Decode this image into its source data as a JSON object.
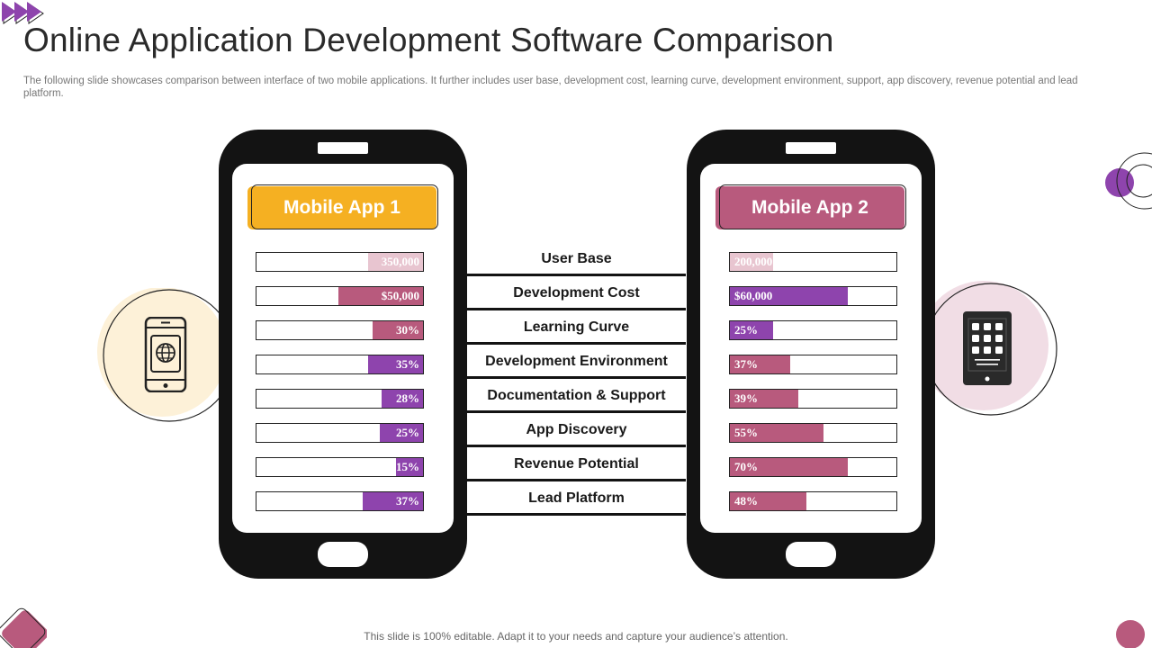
{
  "title": "Online Application Development Software Comparison",
  "subtitle": "The following slide showcases comparison between interface of two mobile applications. It further includes user base, development cost, learning curve, development environment, support, app discovery, revenue potential and  lead platform.",
  "footer": "This slide is 100% editable. Adapt it to your needs and capture your audience’s attention.",
  "colors": {
    "app1_header": "#f5b022",
    "app2_header": "#b85a7d",
    "purple": "#8e44ad",
    "mauve": "#b85a7d",
    "pale_pink": "#e8c5d0",
    "phone": "#131313",
    "cream_circle": "#fdf1d8",
    "pink_circle": "#f1dde5"
  },
  "app1": {
    "label": "Mobile App 1",
    "icon": "passport-phone-icon"
  },
  "app2": {
    "label": "Mobile App 2",
    "icon": "tablet-grid-icon"
  },
  "criteria": [
    "User Base",
    "Development Cost",
    "Learning Curve",
    "Development Environment",
    "Documentation & Support",
    "App Discovery",
    "Revenue Potential",
    "Lead Platform"
  ],
  "chart_data": {
    "type": "bar",
    "categories": [
      "User Base",
      "Development Cost",
      "Learning Curve",
      "Development Environment",
      "Documentation & Support",
      "App Discovery",
      "Revenue Potential",
      "Lead Platform"
    ],
    "series": [
      {
        "name": "Mobile App 1",
        "labels": [
          "350,000",
          "$50,000",
          "30%",
          "35%",
          "28%",
          "25%",
          "15%",
          "37%"
        ],
        "values": [
          0.33,
          0.51,
          0.3,
          0.33,
          0.25,
          0.26,
          0.16,
          0.36
        ],
        "colors": [
          "#e8c5d0",
          "#b85a7d",
          "#b85a7d",
          "#8e44ad",
          "#8e44ad",
          "#8e44ad",
          "#8e44ad",
          "#8e44ad"
        ]
      },
      {
        "name": "Mobile App 2",
        "labels": [
          "200,000",
          "$60,000",
          "25%",
          "37%",
          "39%",
          "55%",
          "70%",
          "48%"
        ],
        "values": [
          0.26,
          0.71,
          0.26,
          0.36,
          0.41,
          0.56,
          0.71,
          0.46
        ],
        "colors": [
          "#e8c5d0",
          "#8e44ad",
          "#8e44ad",
          "#b85a7d",
          "#b85a7d",
          "#b85a7d",
          "#b85a7d",
          "#b85a7d"
        ]
      }
    ]
  }
}
